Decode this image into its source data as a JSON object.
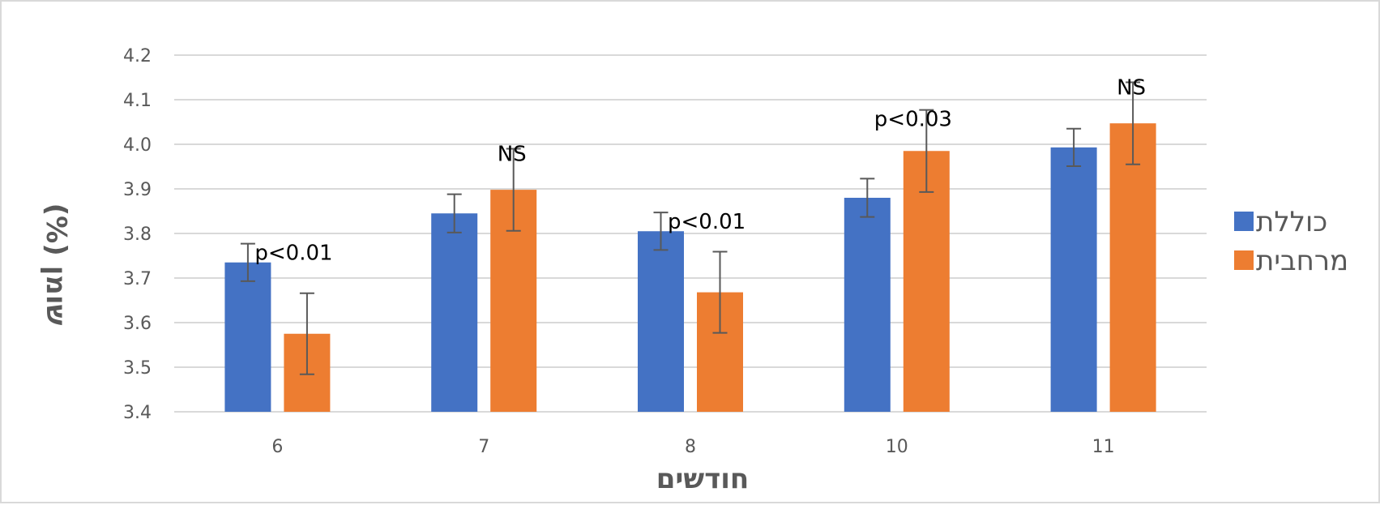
{
  "chart_data": {
    "type": "bar",
    "title": "",
    "xlabel": "חודשים",
    "ylabel": "שומן (%)",
    "ylim": [
      3.4,
      4.2
    ],
    "yticks": [
      "3.4",
      "3.5",
      "3.6",
      "3.7",
      "3.8",
      "3.9",
      "4.0",
      "4.1",
      "4.2"
    ],
    "grid": true,
    "legend_position": "right",
    "categories": [
      "6",
      "7",
      "8",
      "10",
      "11"
    ],
    "series": [
      {
        "name": "כוללת",
        "color": "#4472C4",
        "values": [
          3.735,
          3.845,
          3.805,
          3.88,
          3.993
        ],
        "error": [
          0.042,
          0.043,
          0.042,
          0.043,
          0.042
        ]
      },
      {
        "name": "מרחבית",
        "color": "#ED7D31",
        "values": [
          3.575,
          3.898,
          3.668,
          3.985,
          4.047
        ],
        "error": [
          0.091,
          0.092,
          0.091,
          0.092,
          0.092
        ]
      }
    ],
    "annotations": [
      "p<0.01",
      "NS",
      "p<0.01",
      "p<0.03",
      "NS"
    ],
    "error_bar_color": "#595959",
    "grid_color": "#d9d9d9"
  }
}
